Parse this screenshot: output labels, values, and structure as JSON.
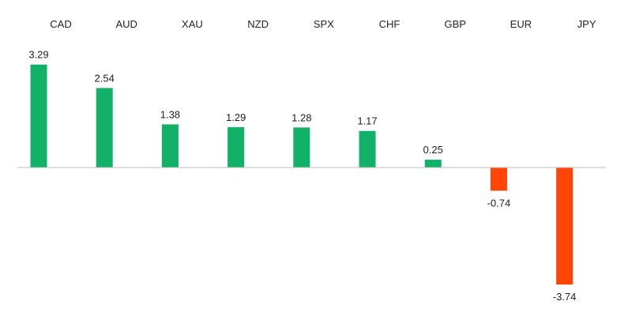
{
  "chart_data": {
    "type": "bar",
    "title": "",
    "xlabel": "",
    "ylabel": "",
    "categories": [
      "CAD",
      "AUD",
      "XAU",
      "NZD",
      "SPX",
      "CHF",
      "GBP",
      "EUR",
      "JPY"
    ],
    "values": [
      3.29,
      2.54,
      1.38,
      1.29,
      1.28,
      1.17,
      0.25,
      -0.74,
      -3.74
    ],
    "data_labels": [
      "3.29",
      "2.54",
      "1.38",
      "1.29",
      "1.28",
      "1.17",
      "0.25",
      "-0.74",
      "-3.74"
    ],
    "ylim": [
      -4.1,
      4.6
    ],
    "category_labels_position": "top",
    "grid": false,
    "legend": "none",
    "colors": {
      "positive": "#11b168",
      "negative": "#ff4508",
      "axis": "#bfbfbf",
      "text": "#222222"
    }
  }
}
